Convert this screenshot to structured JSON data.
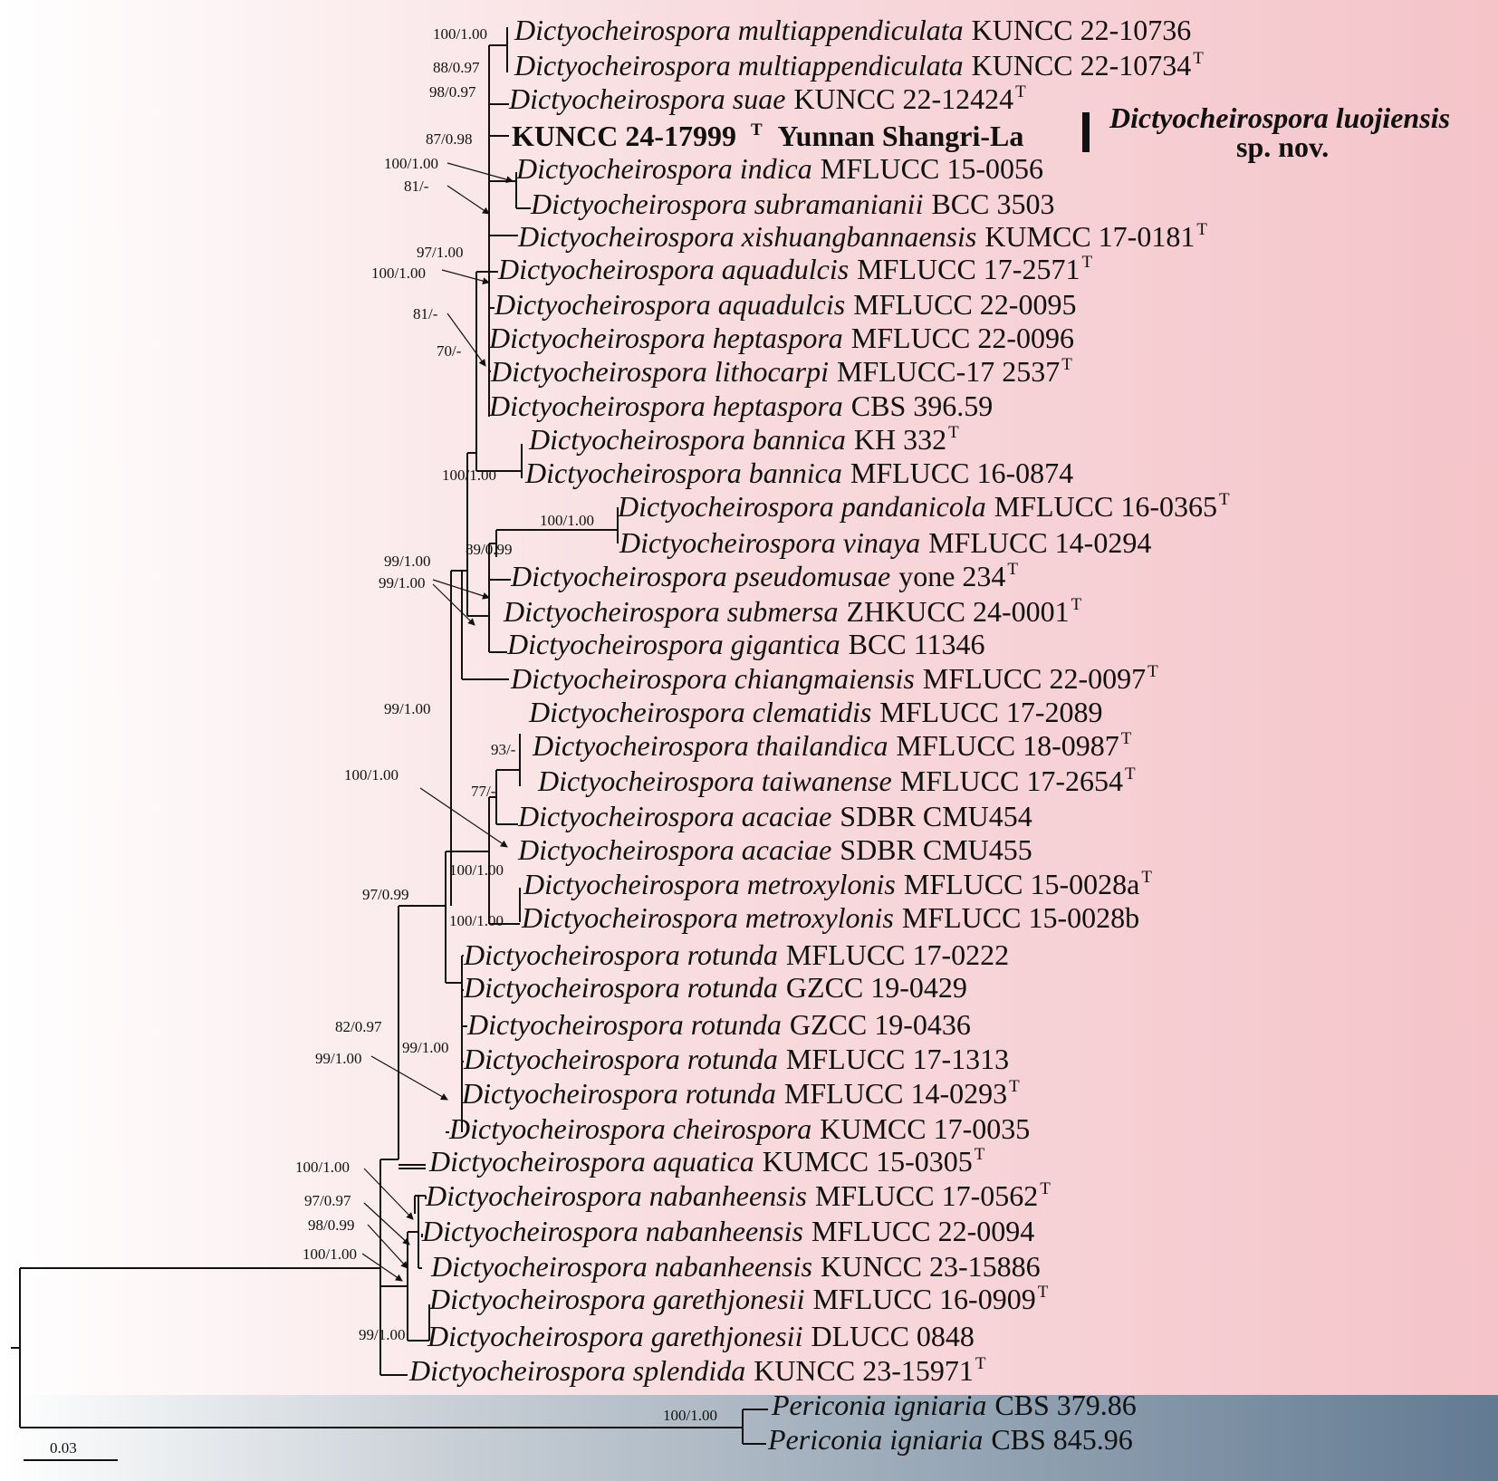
{
  "novel_strain": {
    "code": "KUNCC 24-17999",
    "type_mark": "T",
    "locality": "Yunnan Shangri-La",
    "species_name": "Dictyocheirospora luojiensis",
    "status": "sp. nov."
  },
  "taxa": [
    {
      "genus": "Dictyocheirospora multiappendiculata",
      "strain": "KUNCC 22-10736",
      "type": ""
    },
    {
      "genus": "Dictyocheirospora multiappendiculata",
      "strain": "KUNCC 22-10734",
      "type": "T"
    },
    {
      "genus": "Dictyocheirospora suae",
      "strain": "KUNCC 22-12424",
      "type": "T"
    },
    {
      "genus": "Dictyocheirospora indica",
      "strain": "MFLUCC 15-0056",
      "type": ""
    },
    {
      "genus": "Dictyocheirospora subramanianii",
      "strain": "BCC 3503",
      "type": ""
    },
    {
      "genus": "Dictyocheirospora xishuangbannaensis",
      "strain": "KUMCC 17-0181",
      "type": "T"
    },
    {
      "genus": "Dictyocheirospora aquadulcis",
      "strain": "MFLUCC 17-2571",
      "type": "T"
    },
    {
      "genus": "Dictyocheirospora aquadulcis",
      "strain": "MFLUCC 22-0095",
      "type": ""
    },
    {
      "genus": "Dictyocheirospora heptaspora",
      "strain": "MFLUCC 22-0096",
      "type": ""
    },
    {
      "genus": "Dictyocheirospora lithocarpi",
      "strain": "MFLUCC-17 2537",
      "type": "T"
    },
    {
      "genus": "Dictyocheirospora heptaspora",
      "strain": "CBS 396.59",
      "type": ""
    },
    {
      "genus": "Dictyocheirospora bannica",
      "strain": "KH 332",
      "type": "T"
    },
    {
      "genus": "Dictyocheirospora bannica",
      "strain": "MFLUCC 16-0874",
      "type": ""
    },
    {
      "genus": "Dictyocheirospora pandanicola",
      "strain": "MFLUCC 16-0365",
      "type": "T"
    },
    {
      "genus": "Dictyocheirospora vinaya",
      "strain": "MFLUCC 14-0294",
      "type": ""
    },
    {
      "genus": "Dictyocheirospora pseudomusae",
      "strain": "yone 234",
      "type": "T"
    },
    {
      "genus": "Dictyocheirospora submersa",
      "strain": "ZHKUCC 24-0001",
      "type": "T"
    },
    {
      "genus": "Dictyocheirospora gigantica",
      "strain": "BCC 11346",
      "type": ""
    },
    {
      "genus": "Dictyocheirospora chiangmaiensis",
      "strain": "MFLUCC 22-0097",
      "type": "T"
    },
    {
      "genus": "Dictyocheirospora clematidis",
      "strain": "MFLUCC 17-2089",
      "type": ""
    },
    {
      "genus": "Dictyocheirospora thailandica",
      "strain": "MFLUCC 18-0987",
      "type": "T"
    },
    {
      "genus": "Dictyocheirospora taiwanense",
      "strain": "MFLUCC 17-2654",
      "type": "T"
    },
    {
      "genus": "Dictyocheirospora acaciae",
      "strain": "SDBR CMU454",
      "type": ""
    },
    {
      "genus": "Dictyocheirospora acaciae",
      "strain": "SDBR CMU455",
      "type": ""
    },
    {
      "genus": "Dictyocheirospora metroxylonis",
      "strain": "MFLUCC 15-0028a",
      "type": "T"
    },
    {
      "genus": "Dictyocheirospora metroxylonis",
      "strain": "MFLUCC 15-0028b",
      "type": ""
    },
    {
      "genus": "Dictyocheirospora rotunda",
      "strain": "MFLUCC 17-0222",
      "type": ""
    },
    {
      "genus": "Dictyocheirospora rotunda",
      "strain": "GZCC 19-0429",
      "type": ""
    },
    {
      "genus": "Dictyocheirospora rotunda",
      "strain": "GZCC 19-0436",
      "type": ""
    },
    {
      "genus": "Dictyocheirospora rotunda",
      "strain": "MFLUCC 17-1313",
      "type": ""
    },
    {
      "genus": "Dictyocheirospora rotunda",
      "strain": "MFLUCC 14-0293",
      "type": "T"
    },
    {
      "genus": "Dictyocheirospora cheirospora",
      "strain": "KUMCC 17-0035",
      "type": ""
    },
    {
      "genus": "Dictyocheirospora aquatica",
      "strain": "KUMCC 15-0305",
      "type": "T"
    },
    {
      "genus": "Dictyocheirospora nabanheensis",
      "strain": "MFLUCC 17-0562",
      "type": "T"
    },
    {
      "genus": "Dictyocheirospora nabanheensis",
      "strain": "MFLUCC 22-0094",
      "type": ""
    },
    {
      "genus": "Dictyocheirospora nabanheensis",
      "strain": "KUNCC 23-15886",
      "type": ""
    },
    {
      "genus": "Dictyocheirospora garethjonesii",
      "strain": "MFLUCC 16-0909",
      "type": "T"
    },
    {
      "genus": "Dictyocheirospora garethjonesii",
      "strain": "DLUCC 0848",
      "type": ""
    },
    {
      "genus": "Dictyocheirospora splendida",
      "strain": "KUNCC 23-15971",
      "type": "T"
    },
    {
      "genus": "Periconia igniaria",
      "strain": "CBS 379.86",
      "type": ""
    },
    {
      "genus": "Periconia igniaria",
      "strain": "CBS 845.96",
      "type": ""
    }
  ],
  "support_values": [
    "100/1.00",
    "88/0.97",
    "98/0.97",
    "87/0.98",
    "100/1.00",
    "81/-",
    "97/1.00",
    "100/1.00",
    "81/-",
    "70/-",
    "100/1.00",
    "100/1.00",
    "89/0.99",
    "99/1.00",
    "99/1.00",
    "99/1.00",
    "93/-",
    "100/1.00",
    "77/-",
    "100/1.00",
    "100/1.00",
    "97/0.99",
    "82/0.97",
    "99/1.00",
    "99/1.00",
    "100/1.00",
    "97/0.97",
    "98/0.99",
    "100/1.00",
    "99/1.00",
    "100/1.00"
  ],
  "scale_bar": {
    "label": "0.03"
  },
  "colors": {
    "ingroup_fill": "#f4c4c9",
    "outgroup_fill": "#627a92",
    "branch": "#111111"
  }
}
